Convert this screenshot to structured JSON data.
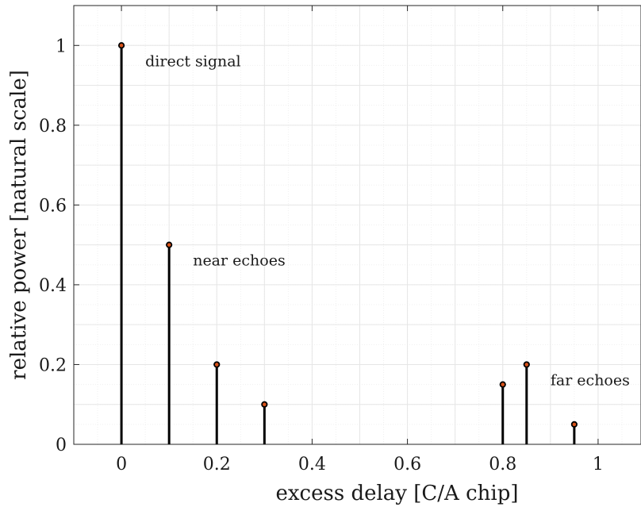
{
  "chart_data": {
    "type": "stem",
    "xlabel": "excess delay [C/A chip]",
    "ylabel": "relative power [natural scale]",
    "xlim": [
      -0.1,
      1.09
    ],
    "ylim": [
      0,
      1.1
    ],
    "x_ticks": [
      0,
      0.2,
      0.4,
      0.6,
      0.8,
      1
    ],
    "x_tick_labels": [
      "0",
      "0.2",
      "0.4",
      "0.6",
      "0.8",
      "1"
    ],
    "y_ticks": [
      0,
      0.2,
      0.4,
      0.6,
      0.8,
      1
    ],
    "y_tick_labels": [
      "0",
      "0.2",
      "0.4",
      "0.6",
      "0.8",
      "1"
    ],
    "grid": "major and minor",
    "marker": "circle",
    "series": [
      {
        "x": [
          0,
          0.1,
          0.2,
          0.3,
          0.8,
          0.85,
          0.95
        ],
        "y": [
          1.0,
          0.5,
          0.2,
          0.1,
          0.15,
          0.2,
          0.05
        ]
      }
    ],
    "annotations": [
      {
        "text": "direct signal",
        "x": 0.05,
        "y": 0.96
      },
      {
        "text": "near echoes",
        "x": 0.15,
        "y": 0.46
      },
      {
        "text": "far echoes",
        "x": 0.9,
        "y": 0.16
      }
    ],
    "colors": {
      "stem": "#000000",
      "marker_edge": "#000000",
      "marker_face": "#d95319",
      "grid": "#e6e6e6",
      "axis": "#262626"
    }
  }
}
